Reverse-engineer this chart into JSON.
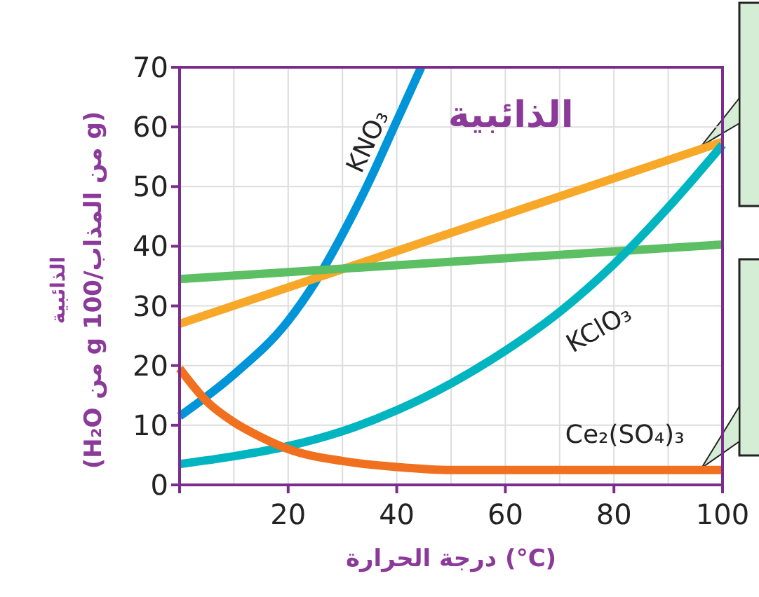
{
  "chart_data": {
    "type": "line",
    "title": "الذائبية",
    "xlabel": "درجة الحرارة (°C)",
    "ylabel": "الذائبية\n(g من المذاب/100 g من H₂O)",
    "xlim": [
      0,
      100
    ],
    "ylim": [
      0,
      70
    ],
    "xticks": [
      {
        "value": 0,
        "label": null
      },
      20,
      40,
      60,
      80,
      100
    ],
    "yticks": [
      0,
      10,
      20,
      30,
      40,
      50,
      60,
      70
    ],
    "grid": true,
    "marker": "none",
    "line_style": "solid",
    "series": [
      {
        "name": "KNO₃",
        "color": "#0094d8",
        "x": [
          0,
          10,
          20,
          25,
          30,
          35,
          40,
          44.5
        ],
        "values": [
          11.5,
          18.5,
          27.5,
          34,
          42,
          51,
          61,
          70
        ]
      },
      {
        "color": "#f8a828",
        "x": [
          0,
          100
        ],
        "values": [
          27,
          57.5
        ]
      },
      {
        "color": "#5cbf64",
        "x": [
          0,
          100
        ],
        "values": [
          34.5,
          40.3
        ]
      },
      {
        "name": "KClO₃",
        "color": "#00b5c0",
        "x": [
          0,
          10,
          20,
          30,
          40,
          50,
          60,
          70,
          80,
          90,
          100
        ],
        "values": [
          3.5,
          4.8,
          6.5,
          9,
          12.5,
          17,
          22.5,
          29,
          37,
          46.5,
          57
        ]
      },
      {
        "name": "Ce₂(SO₄)₃",
        "color": "#f07020",
        "x": [
          0,
          5,
          10,
          15,
          20,
          30,
          40,
          50,
          60,
          100
        ],
        "values": [
          19.5,
          14,
          10.5,
          8,
          6,
          4,
          3,
          2.5,
          2.5,
          2.5
        ]
      }
    ]
  }
}
